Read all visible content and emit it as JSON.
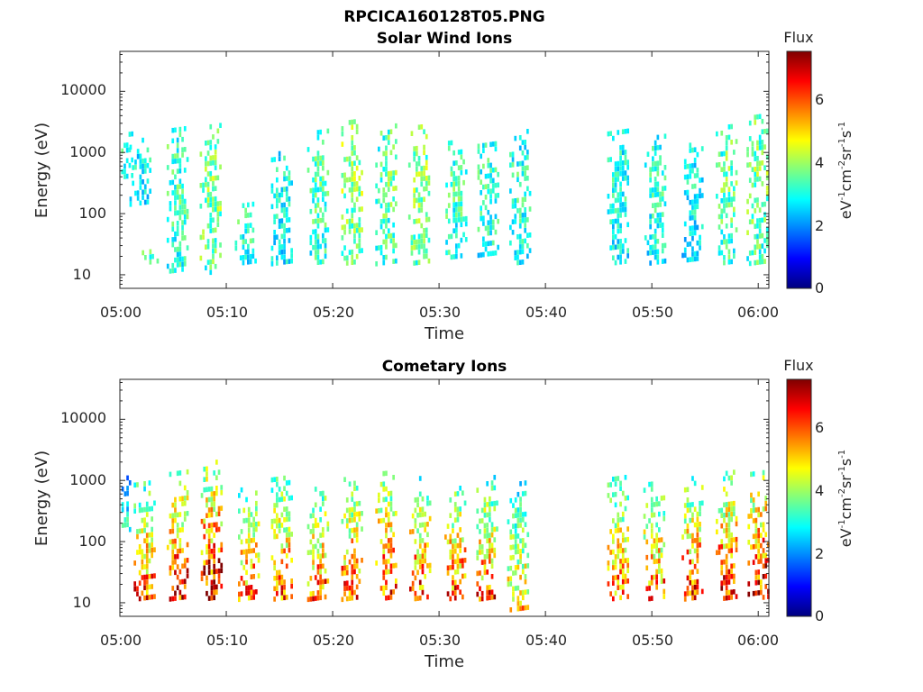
{
  "figure": {
    "title": "RPCICA160128T05.PNG"
  },
  "colormap": {
    "name": "jet",
    "stops": [
      "#00007f",
      "#0000ff",
      "#007fff",
      "#00ffff",
      "#7fff7f",
      "#ffff00",
      "#ff7f00",
      "#ff0000",
      "#7f0000"
    ],
    "range": [
      0,
      7.4
    ]
  },
  "chart_data": [
    {
      "type": "heatmap",
      "title": "Solar Wind Ions",
      "xlabel": "Time",
      "ylabel": "Energy (eV)",
      "x_ticks": [
        "05:00",
        "05:10",
        "05:20",
        "05:30",
        "05:40",
        "05:50",
        "06:00"
      ],
      "xlim_minutes": [
        0,
        61
      ],
      "y_scale": "log",
      "y_ticks": [
        "10",
        "100",
        "1000",
        "10000"
      ],
      "ylim": [
        6,
        45000
      ],
      "colorbar": {
        "label": "Flux",
        "units": "eV-1cm-2sr-1s-1",
        "ticks": [
          "0",
          "2",
          "4",
          "6"
        ]
      },
      "data_gap_minutes": [
        38.7,
        45.8
      ],
      "bursts": [
        {
          "t": 0.2,
          "emin": 400,
          "emax": 2200,
          "level": 2.8
        },
        {
          "t": 1.9,
          "emin": 150,
          "emax": 2000,
          "level": 2.6
        },
        {
          "t": 2.6,
          "emin": 16,
          "emax": 25,
          "level": 3.1
        },
        {
          "t": 5.4,
          "emin": 12,
          "emax": 2600,
          "level": 3.0
        },
        {
          "t": 8.5,
          "emin": 11,
          "emax": 3000,
          "level": 3.4
        },
        {
          "t": 11.8,
          "emin": 16,
          "emax": 150,
          "level": 2.9
        },
        {
          "t": 15.2,
          "emin": 16,
          "emax": 1000,
          "level": 2.7
        },
        {
          "t": 18.6,
          "emin": 16,
          "emax": 2500,
          "level": 3.1
        },
        {
          "t": 21.8,
          "emin": 16,
          "emax": 3500,
          "level": 3.5
        },
        {
          "t": 25.0,
          "emin": 16,
          "emax": 2600,
          "level": 3.2
        },
        {
          "t": 28.1,
          "emin": 16,
          "emax": 3000,
          "level": 3.4
        },
        {
          "t": 31.6,
          "emin": 20,
          "emax": 1700,
          "level": 3.0
        },
        {
          "t": 34.6,
          "emin": 22,
          "emax": 1500,
          "level": 2.9
        },
        {
          "t": 37.6,
          "emin": 16,
          "emax": 2600,
          "level": 2.8
        },
        {
          "t": 46.8,
          "emin": 16,
          "emax": 2500,
          "level": 2.7
        },
        {
          "t": 50.3,
          "emin": 16,
          "emax": 1800,
          "level": 2.8
        },
        {
          "t": 53.8,
          "emin": 18,
          "emax": 1500,
          "level": 2.6
        },
        {
          "t": 57.0,
          "emin": 16,
          "emax": 2600,
          "level": 3.2
        },
        {
          "t": 59.9,
          "emin": 16,
          "emax": 4500,
          "level": 3.3
        }
      ]
    },
    {
      "type": "heatmap",
      "title": "Cometary Ions",
      "xlabel": "Time",
      "ylabel": "Energy (eV)",
      "x_ticks": [
        "05:00",
        "05:10",
        "05:20",
        "05:30",
        "05:40",
        "05:50",
        "06:00"
      ],
      "xlim_minutes": [
        0,
        61
      ],
      "y_scale": "log",
      "y_ticks": [
        "10",
        "100",
        "1000",
        "10000"
      ],
      "ylim": [
        6,
        45000
      ],
      "colorbar": {
        "label": "Flux",
        "units": "eV-1cm-2sr-1s-1",
        "ticks": [
          "0",
          "2",
          "4",
          "6"
        ]
      },
      "data_gap_minutes": [
        38.7,
        44.8
      ],
      "bursts": [
        {
          "t": 0.0,
          "emin": 150,
          "emax": 1200,
          "level": 2.8
        },
        {
          "t": 2.3,
          "emin": 12,
          "emax": 900,
          "level": 5.2
        },
        {
          "t": 5.4,
          "emin": 12,
          "emax": 1500,
          "level": 5.6
        },
        {
          "t": 8.6,
          "emin": 12,
          "emax": 2200,
          "level": 5.9
        },
        {
          "t": 12.1,
          "emin": 12,
          "emax": 800,
          "level": 5.1
        },
        {
          "t": 15.2,
          "emin": 12,
          "emax": 1300,
          "level": 5.2
        },
        {
          "t": 18.6,
          "emin": 12,
          "emax": 800,
          "level": 5.2
        },
        {
          "t": 21.8,
          "emin": 12,
          "emax": 1200,
          "level": 5.3
        },
        {
          "t": 25.0,
          "emin": 12,
          "emax": 1500,
          "level": 5.4
        },
        {
          "t": 28.2,
          "emin": 12,
          "emax": 1200,
          "level": 5.3
        },
        {
          "t": 31.5,
          "emin": 12,
          "emax": 1200,
          "level": 5.2
        },
        {
          "t": 34.5,
          "emin": 12,
          "emax": 1100,
          "level": 5.1
        },
        {
          "t": 37.4,
          "emin": 8,
          "emax": 1000,
          "level": 4.3
        },
        {
          "t": 46.8,
          "emin": 12,
          "emax": 1200,
          "level": 5.1
        },
        {
          "t": 50.2,
          "emin": 12,
          "emax": 1000,
          "level": 5.0
        },
        {
          "t": 53.8,
          "emin": 12,
          "emax": 1200,
          "level": 5.4
        },
        {
          "t": 57.0,
          "emin": 12,
          "emax": 1400,
          "level": 5.6
        },
        {
          "t": 60.0,
          "emin": 12,
          "emax": 1600,
          "level": 5.9
        }
      ]
    }
  ]
}
